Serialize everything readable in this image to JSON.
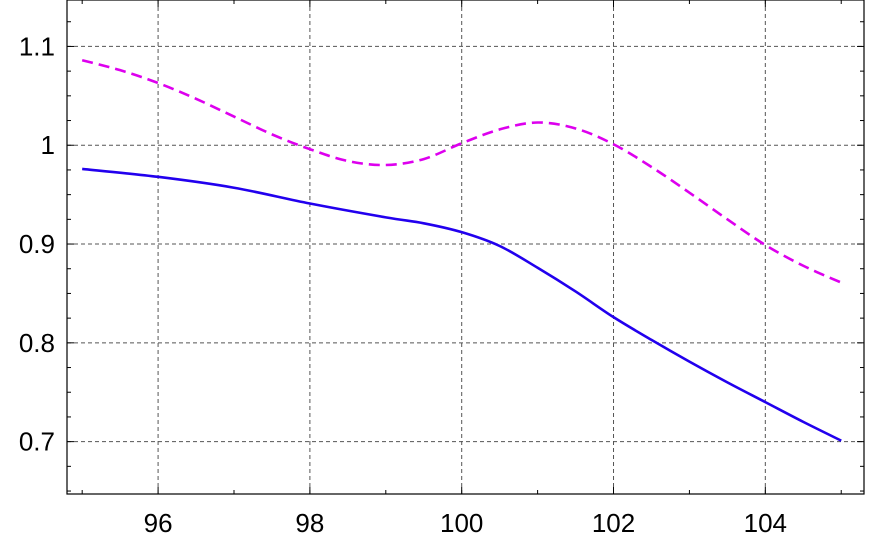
{
  "chart_data": {
    "type": "line",
    "title": "",
    "xlabel": "",
    "ylabel": "",
    "xlim": [
      94.8,
      105.3
    ],
    "ylim": [
      0.647,
      1.147
    ],
    "grid": true,
    "legend": "none",
    "x_ticks": [
      {
        "value": 96,
        "label": "96"
      },
      {
        "value": 98,
        "label": "98"
      },
      {
        "value": 100,
        "label": "100"
      },
      {
        "value": 102,
        "label": "102"
      },
      {
        "value": 104,
        "label": "104"
      }
    ],
    "y_ticks": [
      {
        "value": 0.7,
        "label": "0.7"
      },
      {
        "value": 0.8,
        "label": "0.8"
      },
      {
        "value": 0.9,
        "label": "0.9"
      },
      {
        "value": 1.0,
        "label": "1"
      },
      {
        "value": 1.1,
        "label": "1.1"
      }
    ],
    "series": [
      {
        "color": "#2200ee",
        "dash": "solid",
        "x": [
          95,
          96,
          97,
          98,
          99,
          99.5,
          100,
          100.5,
          101,
          101.5,
          102,
          102.5,
          103,
          103.5,
          104,
          104.5,
          105
        ],
        "y": [
          0.976,
          0.968,
          0.957,
          0.941,
          0.927,
          0.921,
          0.912,
          0.898,
          0.876,
          0.852,
          0.826,
          0.803,
          0.781,
          0.76,
          0.74,
          0.72,
          0.701
        ]
      },
      {
        "color": "#dd00ee",
        "dash": "dashed",
        "x": [
          95,
          95.5,
          96,
          96.5,
          97,
          97.5,
          98,
          98.5,
          99,
          99.5,
          100,
          100.5,
          101,
          101.5,
          102,
          102.5,
          103,
          103.5,
          104,
          104.5,
          105
        ],
        "y": [
          1.086,
          1.076,
          1.063,
          1.047,
          1.029,
          1.011,
          0.996,
          0.984,
          0.98,
          0.986,
          1.002,
          1.016,
          1.023,
          1.017,
          1.001,
          0.978,
          0.952,
          0.925,
          0.899,
          0.878,
          0.861
        ]
      }
    ]
  }
}
